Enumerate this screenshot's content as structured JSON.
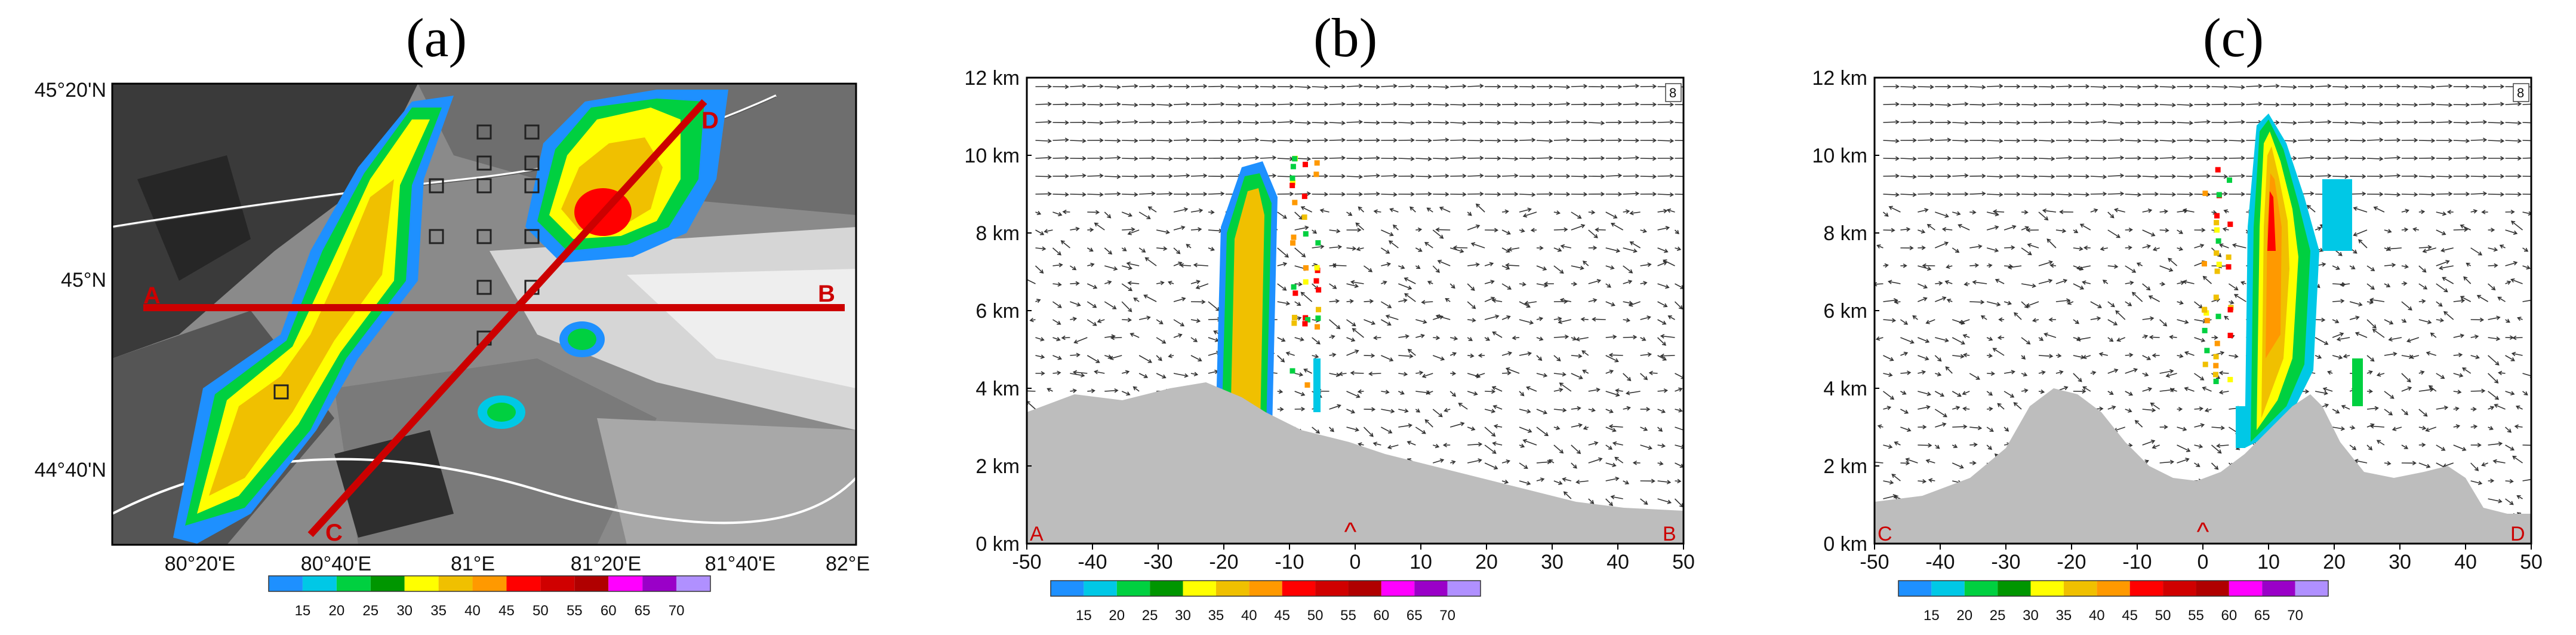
{
  "panels": [
    {
      "id": "a",
      "title": "(a)",
      "lat_ticks": [
        "45°20'N",
        "45°N",
        "44°40'N"
      ],
      "lon_ticks": [
        "80°20'E",
        "80°40'E",
        "81°E",
        "81°20'E",
        "81°40'E",
        "82°E"
      ],
      "section_labels": [
        "A",
        "B",
        "C",
        "D"
      ],
      "colorbar": [
        "15",
        "20",
        "25",
        "30",
        "35",
        "40",
        "45",
        "50",
        "55",
        "60",
        "65",
        "70"
      ]
    },
    {
      "id": "b",
      "title": "(b)",
      "y_ticks": [
        "12 km",
        "10 km",
        "8 km",
        "6 km",
        "4 km",
        "2 km",
        "0 km"
      ],
      "x_ticks": [
        "-50",
        "-40",
        "-30",
        "-20",
        "-10",
        "0",
        "10",
        "20",
        "30",
        "40",
        "50"
      ],
      "left_end": "A",
      "right_end": "B",
      "ref_vector": "8",
      "colorbar": [
        "15",
        "20",
        "25",
        "30",
        "35",
        "40",
        "45",
        "50",
        "55",
        "60",
        "65",
        "70"
      ]
    },
    {
      "id": "c",
      "title": "(c)",
      "y_ticks": [
        "12 km",
        "10 km",
        "8 km",
        "6 km",
        "4 km",
        "2 km",
        "0 km"
      ],
      "x_ticks": [
        "-50",
        "-40",
        "-30",
        "-20",
        "-10",
        "0",
        "10",
        "20",
        "30",
        "40",
        "50"
      ],
      "left_end": "C",
      "right_end": "D",
      "ref_vector": "8",
      "colorbar": [
        "15",
        "20",
        "25",
        "30",
        "35",
        "40",
        "45",
        "50",
        "55",
        "60",
        "65",
        "70"
      ]
    }
  ],
  "colors": {
    "scale": [
      "#1e90ff",
      "#00c8e6",
      "#00d040",
      "#009600",
      "#ffff00",
      "#f0c000",
      "#ff9900",
      "#ff0000",
      "#d00000",
      "#b00000",
      "#ff00ff",
      "#9a00c8",
      "#b090ff"
    ],
    "section_line": "#cc0000",
    "terrain": "#bdbdbd"
  }
}
